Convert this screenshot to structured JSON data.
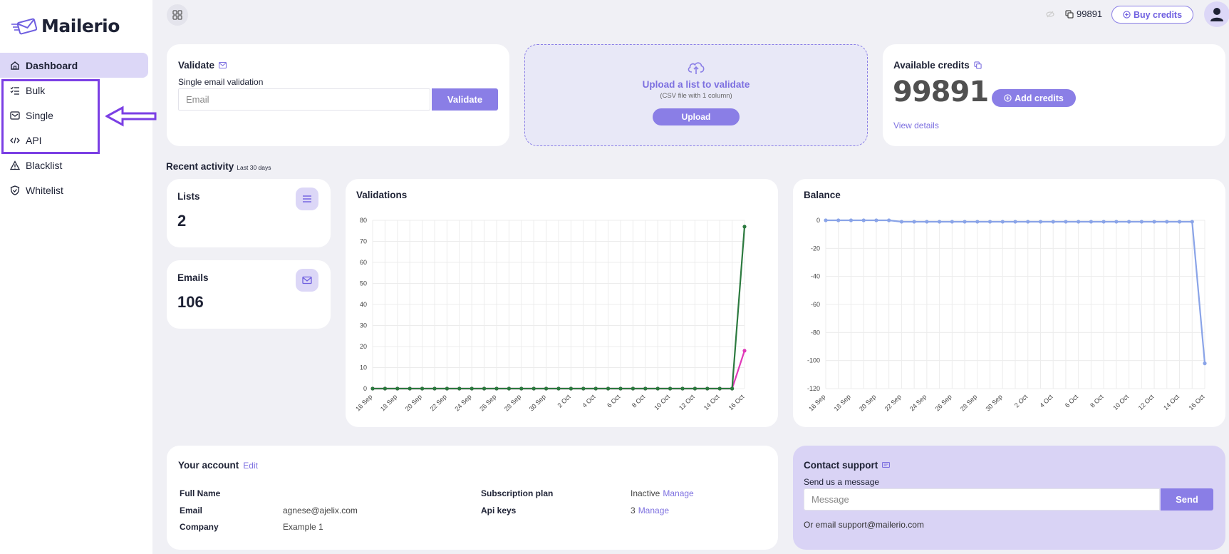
{
  "app": {
    "name": "Mailerio"
  },
  "sidebar": {
    "items": [
      {
        "label": "Dashboard",
        "icon": "home-icon",
        "active": true
      },
      {
        "label": "Bulk",
        "icon": "list-check-icon"
      },
      {
        "label": "Single",
        "icon": "inbox-icon"
      },
      {
        "label": "API",
        "icon": "code-icon"
      },
      {
        "label": "Blacklist",
        "icon": "warning-icon"
      },
      {
        "label": "Whitelist",
        "icon": "shield-check-icon"
      }
    ]
  },
  "topbar": {
    "credits": "99891",
    "buy_label": "Buy credits"
  },
  "validate": {
    "title": "Validate",
    "subtitle": "Single email validation",
    "placeholder": "Email",
    "button": "Validate"
  },
  "upload": {
    "title": "Upload a list to validate",
    "subtitle": "(CSV file with 1 column)",
    "button": "Upload"
  },
  "credits": {
    "title": "Available credits",
    "value": "99891",
    "add_label": "Add credits",
    "view_details": "View details"
  },
  "activity": {
    "title": "Recent activity",
    "subtitle": "Last 30 days"
  },
  "stats": {
    "lists_label": "Lists",
    "lists_value": "2",
    "emails_label": "Emails",
    "emails_value": "106"
  },
  "chart_data": [
    {
      "type": "line",
      "title": "Validations",
      "x": [
        "16 Sep",
        "17 Sep",
        "18 Sep",
        "19 Sep",
        "20 Sep",
        "21 Sep",
        "22 Sep",
        "23 Sep",
        "24 Sep",
        "25 Sep",
        "26 Sep",
        "27 Sep",
        "28 Sep",
        "29 Sep",
        "30 Sep",
        "1 Oct",
        "2 Oct",
        "3 Oct",
        "4 Oct",
        "5 Oct",
        "6 Oct",
        "7 Oct",
        "8 Oct",
        "9 Oct",
        "10 Oct",
        "11 Oct",
        "12 Oct",
        "13 Oct",
        "14 Oct",
        "15 Oct",
        "16 Oct"
      ],
      "xticks": [
        "16 Sep",
        "18 Sep",
        "20 Sep",
        "22 Sep",
        "24 Sep",
        "26 Sep",
        "28 Sep",
        "30 Sep",
        "2 Oct",
        "4 Oct",
        "6 Oct",
        "8 Oct",
        "10 Oct",
        "12 Oct",
        "14 Oct",
        "16 Oct"
      ],
      "yticks": [
        0,
        10,
        20,
        30,
        40,
        50,
        60,
        70,
        80
      ],
      "ylim": [
        0,
        80
      ],
      "grid": true,
      "series": [
        {
          "color": "#e03ab8",
          "values": [
            0,
            0,
            0,
            0,
            0,
            0,
            0,
            0,
            0,
            0,
            0,
            0,
            0,
            0,
            0,
            0,
            0,
            0,
            0,
            0,
            0,
            0,
            0,
            0,
            0,
            0,
            0,
            0,
            0,
            0,
            18
          ]
        },
        {
          "color": "#2c7a3f",
          "values": [
            0,
            0,
            0,
            0,
            0,
            0,
            0,
            0,
            0,
            0,
            0,
            0,
            0,
            0,
            0,
            0,
            0,
            0,
            0,
            0,
            0,
            0,
            0,
            0,
            0,
            0,
            0,
            0,
            0,
            0,
            77
          ]
        }
      ]
    },
    {
      "type": "line",
      "title": "Balance",
      "x": [
        "16 Sep",
        "17 Sep",
        "18 Sep",
        "19 Sep",
        "20 Sep",
        "21 Sep",
        "22 Sep",
        "23 Sep",
        "24 Sep",
        "25 Sep",
        "26 Sep",
        "27 Sep",
        "28 Sep",
        "29 Sep",
        "30 Sep",
        "1 Oct",
        "2 Oct",
        "3 Oct",
        "4 Oct",
        "5 Oct",
        "6 Oct",
        "7 Oct",
        "8 Oct",
        "9 Oct",
        "10 Oct",
        "11 Oct",
        "12 Oct",
        "13 Oct",
        "14 Oct",
        "15 Oct",
        "16 Oct"
      ],
      "xticks": [
        "16 Sep",
        "18 Sep",
        "20 Sep",
        "22 Sep",
        "24 Sep",
        "26 Sep",
        "28 Sep",
        "30 Sep",
        "2 Oct",
        "4 Oct",
        "6 Oct",
        "8 Oct",
        "10 Oct",
        "12 Oct",
        "14 Oct",
        "16 Oct"
      ],
      "yticks": [
        0,
        -20,
        -40,
        -60,
        -80,
        -100,
        -120
      ],
      "ylim": [
        -120,
        0
      ],
      "grid": true,
      "series": [
        {
          "color": "#8aa4e8",
          "values": [
            0,
            0,
            0,
            0,
            0,
            0,
            -1,
            -1,
            -1,
            -1,
            -1,
            -1,
            -1,
            -1,
            -1,
            -1,
            -1,
            -1,
            -1,
            -1,
            -1,
            -1,
            -1,
            -1,
            -1,
            -1,
            -1,
            -1,
            -1,
            -1,
            -102
          ]
        }
      ]
    }
  ],
  "account": {
    "title": "Your account",
    "edit": "Edit",
    "rows": [
      {
        "label": "Full Name",
        "value": ""
      },
      {
        "label": "Email",
        "value": "agnese@ajelix.com"
      },
      {
        "label": "Company",
        "value": "Example 1"
      }
    ],
    "plan_label": "Subscription plan",
    "plan_value": "Inactive",
    "plan_link": "Manage",
    "api_label": "Api keys",
    "api_value": "3",
    "api_link": "Manage"
  },
  "support": {
    "title": "Contact support",
    "subtitle": "Send us a message",
    "placeholder": "Message",
    "button": "Send",
    "email_text": "Or email support@mailerio.com"
  },
  "colors": {
    "accent": "#8a7ee6",
    "active_bg": "#dcd7f7",
    "highlight": "#7b3fe4",
    "support_bg": "#d9d3f5"
  }
}
